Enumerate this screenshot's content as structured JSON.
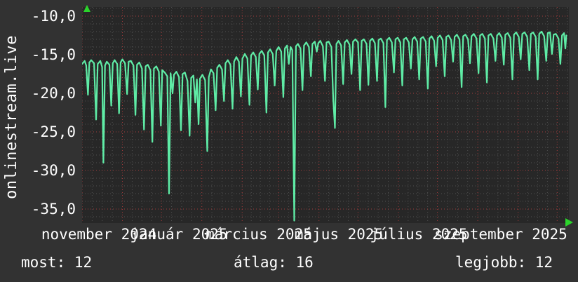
{
  "brand": {
    "label": "onlinestream.live"
  },
  "colors": {
    "background": "#323232",
    "plot_background": "#272727",
    "line": "#5feca6",
    "grid_minor": "#505050",
    "grid_major_red": "#a33c3c",
    "text": "#ffffff",
    "axis_arrow_green": "#2bd42b"
  },
  "icons": {
    "y_axis_arrow": "up-arrow-icon",
    "x_axis_arrow": "right-arrow-icon"
  },
  "stats": {
    "most": {
      "label": "most",
      "value": 12,
      "text": "most: 12"
    },
    "atlag": {
      "label": "átlag",
      "value": 16,
      "text": "átlag: 16"
    },
    "legjobb": {
      "label": "legjobb",
      "value": 12,
      "text": "legjobb: 12"
    }
  },
  "chart_data": {
    "type": "line",
    "title": "",
    "ylabel": "onlinestream.live",
    "xlabel": "",
    "legend": null,
    "grid": {
      "style": "dotted",
      "minor_per_month": 4,
      "month_start_days": [
        0,
        31,
        61,
        92,
        123,
        151,
        182,
        212,
        243,
        273,
        304,
        335,
        365
      ],
      "minor_y_step": 1,
      "major_y_step": 5
    },
    "x_tick_labels": [
      "november 2024",
      "január 2025",
      "március 2025",
      "május 2025",
      "július 2025",
      "szeptember 2025"
    ],
    "y_tick_labels": [
      "-10,0",
      "-15,0",
      "-20,0",
      "-25,0",
      "-30,0",
      "-35,0"
    ],
    "y_ticks": [
      -10,
      -15,
      -20,
      -25,
      -30,
      -35
    ],
    "ylim": [
      -36.8,
      -8.8
    ],
    "xlim_days": [
      0,
      374
    ],
    "x_unit": "days since 2024-10-01",
    "series": [
      {
        "name": "onlinestream.live",
        "color": "#5feca6",
        "points": [
          [
            0,
            -16.2
          ],
          [
            2,
            -15.8
          ],
          [
            3.2,
            -16.4
          ],
          [
            4.5,
            -20.2
          ],
          [
            5.6,
            -16
          ],
          [
            7,
            -15.7
          ],
          [
            9.2,
            -16.1
          ],
          [
            10.8,
            -23.4
          ],
          [
            12,
            -16.2
          ],
          [
            14,
            -15.8
          ],
          [
            15.4,
            -16.6
          ],
          [
            16.4,
            -29
          ],
          [
            17.6,
            -16.4
          ],
          [
            19,
            -15.9
          ],
          [
            21,
            -16.3
          ],
          [
            22.4,
            -21.6
          ],
          [
            23.6,
            -16.1
          ],
          [
            25,
            -15.7
          ],
          [
            27,
            -16.2
          ],
          [
            28.4,
            -22.6
          ],
          [
            29.6,
            -16
          ],
          [
            31,
            -15.6
          ],
          [
            33,
            -16.1
          ],
          [
            34.6,
            -20.1
          ],
          [
            35.8,
            -15.9
          ],
          [
            37.5,
            -15.8
          ],
          [
            39.5,
            -16.4
          ],
          [
            41,
            -22.8
          ],
          [
            42.2,
            -16.3
          ],
          [
            44,
            -16
          ],
          [
            46,
            -16.8
          ],
          [
            47.6,
            -24.7
          ],
          [
            48.8,
            -16.5
          ],
          [
            50.5,
            -16.3
          ],
          [
            52.5,
            -17
          ],
          [
            54,
            -26.3
          ],
          [
            55.2,
            -16.8
          ],
          [
            57,
            -16.5
          ],
          [
            59,
            -17.2
          ],
          [
            60.5,
            -24.2
          ],
          [
            61.6,
            -17
          ],
          [
            63.5,
            -17.3
          ],
          [
            65.5,
            -17.8
          ],
          [
            66.8,
            -33
          ],
          [
            68,
            -17.4
          ],
          [
            69.5,
            -20
          ],
          [
            70.6,
            -17.6
          ],
          [
            72.5,
            -17.2
          ],
          [
            74.5,
            -17.9
          ],
          [
            76,
            -24.8
          ],
          [
            77.2,
            -17.5
          ],
          [
            79,
            -17.3
          ],
          [
            81,
            -18.4
          ],
          [
            82.6,
            -25.5
          ],
          [
            83.8,
            -18
          ],
          [
            85.5,
            -17.7
          ],
          [
            87,
            -21.2
          ],
          [
            88.2,
            -18.2
          ],
          [
            89.5,
            -24
          ],
          [
            90.6,
            -18.1
          ],
          [
            92.5,
            -17.6
          ],
          [
            94.5,
            -18.3
          ],
          [
            96.2,
            -27.5
          ],
          [
            97.4,
            -17.9
          ],
          [
            99,
            -16.9
          ],
          [
            101,
            -17.4
          ],
          [
            102.6,
            -22.2
          ],
          [
            103.8,
            -16.7
          ],
          [
            105.5,
            -16.3
          ],
          [
            107.5,
            -16.9
          ],
          [
            109,
            -21
          ],
          [
            110.2,
            -16.1
          ],
          [
            112,
            -15.7
          ],
          [
            114,
            -16.3
          ],
          [
            115.6,
            -22
          ],
          [
            116.8,
            -15.9
          ],
          [
            118.5,
            -15.3
          ],
          [
            120.5,
            -15.9
          ],
          [
            122,
            -20.4
          ],
          [
            123.2,
            -15.5
          ],
          [
            125,
            -14.9
          ],
          [
            127,
            -15.5
          ],
          [
            128.6,
            -21.5
          ],
          [
            129.8,
            -15.1
          ],
          [
            131.5,
            -14.7
          ],
          [
            133.5,
            -15.3
          ],
          [
            135,
            -19.5
          ],
          [
            136.2,
            -14.9
          ],
          [
            138,
            -14.5
          ],
          [
            140,
            -15.1
          ],
          [
            141.6,
            -22.5
          ],
          [
            142.8,
            -14.7
          ],
          [
            144.5,
            -14.3
          ],
          [
            146.5,
            -14.9
          ],
          [
            148,
            -19
          ],
          [
            149.2,
            -14.5
          ],
          [
            151,
            -14
          ],
          [
            153,
            -14.6
          ],
          [
            154.6,
            -20.5
          ],
          [
            155.8,
            -14.2
          ],
          [
            157.5,
            -13.8
          ],
          [
            158.8,
            -16.2
          ],
          [
            160.2,
            -14
          ],
          [
            161.5,
            -14.4
          ],
          [
            163,
            -36.5
          ],
          [
            164.3,
            -13.9
          ],
          [
            165.8,
            -13.6
          ],
          [
            167.8,
            -14.2
          ],
          [
            169.3,
            -19.6
          ],
          [
            170.5,
            -13.8
          ],
          [
            172.3,
            -13.4
          ],
          [
            174.3,
            -14
          ],
          [
            175.8,
            -17.8
          ],
          [
            177,
            -13.6
          ],
          [
            178.8,
            -13.3
          ],
          [
            180.3,
            -14.6
          ],
          [
            181.5,
            -13.5
          ],
          [
            183,
            -13.2
          ],
          [
            185,
            -13.9
          ],
          [
            186.6,
            -18.4
          ],
          [
            187.8,
            -13.4
          ],
          [
            189.5,
            -13.3
          ],
          [
            191.5,
            -14
          ],
          [
            193,
            -20.8
          ],
          [
            194.3,
            -24.5
          ],
          [
            195.4,
            -13.6
          ],
          [
            197,
            -13.2
          ],
          [
            199,
            -13.8
          ],
          [
            200.6,
            -18.8
          ],
          [
            201.8,
            -13.4
          ],
          [
            203.5,
            -13.1
          ],
          [
            205.5,
            -13.7
          ],
          [
            207,
            -17.5
          ],
          [
            208.2,
            -13.3
          ],
          [
            210,
            -13
          ],
          [
            212,
            -13.4
          ],
          [
            213.6,
            -19.6
          ],
          [
            214.8,
            -13.2
          ],
          [
            216.5,
            -13
          ],
          [
            218.5,
            -13.6
          ],
          [
            220,
            -18.9
          ],
          [
            221.2,
            -13.2
          ],
          [
            223,
            -12.9
          ],
          [
            225,
            -13.5
          ],
          [
            226.6,
            -18.4
          ],
          [
            227.8,
            -13.1
          ],
          [
            229.5,
            -12.9
          ],
          [
            231.5,
            -13.5
          ],
          [
            233,
            -21.8
          ],
          [
            234.2,
            -13.1
          ],
          [
            236,
            -12.8
          ],
          [
            238,
            -13.4
          ],
          [
            239.6,
            -17.3
          ],
          [
            240.8,
            -13
          ],
          [
            242.5,
            -12.8
          ],
          [
            244.5,
            -13.4
          ],
          [
            246,
            -19
          ],
          [
            247.2,
            -13
          ],
          [
            249,
            -12.8
          ],
          [
            251,
            -13.4
          ],
          [
            252.6,
            -16.8
          ],
          [
            253.8,
            -13
          ],
          [
            255.5,
            -12.7
          ],
          [
            257.5,
            -13.3
          ],
          [
            259,
            -18.2
          ],
          [
            260.2,
            -12.9
          ],
          [
            262,
            -12.7
          ],
          [
            264,
            -13.3
          ],
          [
            265.6,
            -19.4
          ],
          [
            266.8,
            -12.9
          ],
          [
            268.5,
            -12.6
          ],
          [
            270.5,
            -13.2
          ],
          [
            272,
            -16.5
          ],
          [
            273.2,
            -12.8
          ],
          [
            275,
            -12.5
          ],
          [
            277,
            -13.1
          ],
          [
            278.6,
            -17.8
          ],
          [
            279.8,
            -12.7
          ],
          [
            281.5,
            -12.5
          ],
          [
            283.5,
            -13.1
          ],
          [
            285,
            -15.9
          ],
          [
            286.2,
            -12.7
          ],
          [
            288,
            -12.4
          ],
          [
            290,
            -13
          ],
          [
            291.6,
            -19.2
          ],
          [
            292.8,
            -12.6
          ],
          [
            294.5,
            -12.4
          ],
          [
            296.5,
            -13
          ],
          [
            298,
            -16.1
          ],
          [
            299.2,
            -12.6
          ],
          [
            301,
            -12.3
          ],
          [
            303,
            -12.9
          ],
          [
            304.6,
            -17.4
          ],
          [
            305.8,
            -12.5
          ],
          [
            307.5,
            -12.3
          ],
          [
            309.5,
            -12.9
          ],
          [
            311,
            -18.6
          ],
          [
            312.2,
            -12.5
          ],
          [
            314,
            -12.3
          ],
          [
            316,
            -12.9
          ],
          [
            317.6,
            -15.8
          ],
          [
            318.8,
            -12.5
          ],
          [
            320.5,
            -12.2
          ],
          [
            322.5,
            -12.8
          ],
          [
            324,
            -16.3
          ],
          [
            325.2,
            -12.4
          ],
          [
            327,
            -12.2
          ],
          [
            329,
            -12.8
          ],
          [
            330.6,
            -18.2
          ],
          [
            331.8,
            -12.4
          ],
          [
            333.5,
            -12.1
          ],
          [
            335.5,
            -12.7
          ],
          [
            337,
            -15.6
          ],
          [
            338.2,
            -12.3
          ],
          [
            340,
            -12.1
          ],
          [
            342,
            -12.7
          ],
          [
            343.6,
            -17
          ],
          [
            344.8,
            -12.3
          ],
          [
            346.5,
            -12.1
          ],
          [
            348.5,
            -12.7
          ],
          [
            350,
            -18.2
          ],
          [
            351.2,
            -12.3
          ],
          [
            353,
            -12
          ],
          [
            355,
            -12.6
          ],
          [
            356.6,
            -15.8
          ],
          [
            357.8,
            -12.2
          ],
          [
            359.5,
            -12.1
          ],
          [
            361,
            -14.9
          ],
          [
            362.3,
            -12.4
          ],
          [
            364,
            -12.3
          ],
          [
            366,
            -12.9
          ],
          [
            367.5,
            -16.2
          ],
          [
            368.7,
            -12.5
          ],
          [
            370.3,
            -12.2
          ],
          [
            371.3,
            -14.2
          ],
          [
            372,
            -12.5
          ]
        ]
      }
    ]
  }
}
